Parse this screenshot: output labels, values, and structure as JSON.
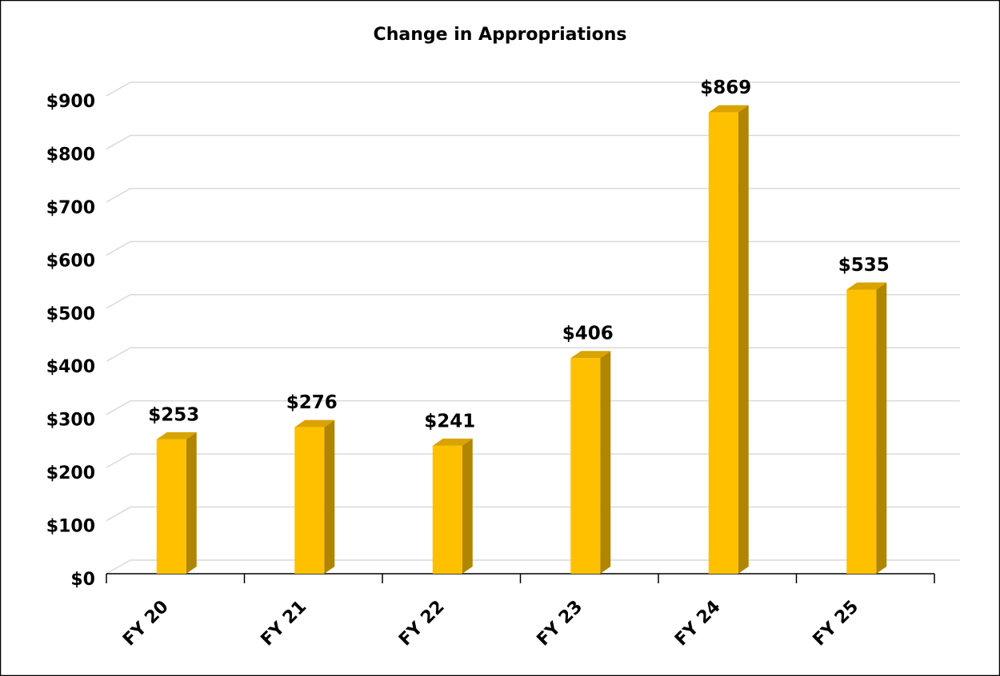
{
  "chart_data": {
    "type": "bar3d",
    "title": "Change in Appropriations",
    "categories": [
      "FY 20",
      "FY 21",
      "FY 22",
      "FY 23",
      "FY 24",
      "FY 25"
    ],
    "values": [
      253,
      276,
      241,
      406,
      869,
      535
    ],
    "value_labels": [
      "$253",
      "$276",
      "$241",
      "$406",
      "$869",
      "$535"
    ],
    "color": "#ffc000",
    "ylim": [
      0,
      900
    ],
    "yticks": [
      {
        "value": 0,
        "label": "$0"
      },
      {
        "value": 100,
        "label": "$100"
      },
      {
        "value": 200,
        "label": "$200"
      },
      {
        "value": 300,
        "label": "$300"
      },
      {
        "value": 400,
        "label": "$400"
      },
      {
        "value": 500,
        "label": "$500"
      },
      {
        "value": 600,
        "label": "$600"
      },
      {
        "value": 700,
        "label": "$700"
      },
      {
        "value": 800,
        "label": "$800"
      },
      {
        "value": 900,
        "label": "$900"
      }
    ],
    "grid": true
  }
}
